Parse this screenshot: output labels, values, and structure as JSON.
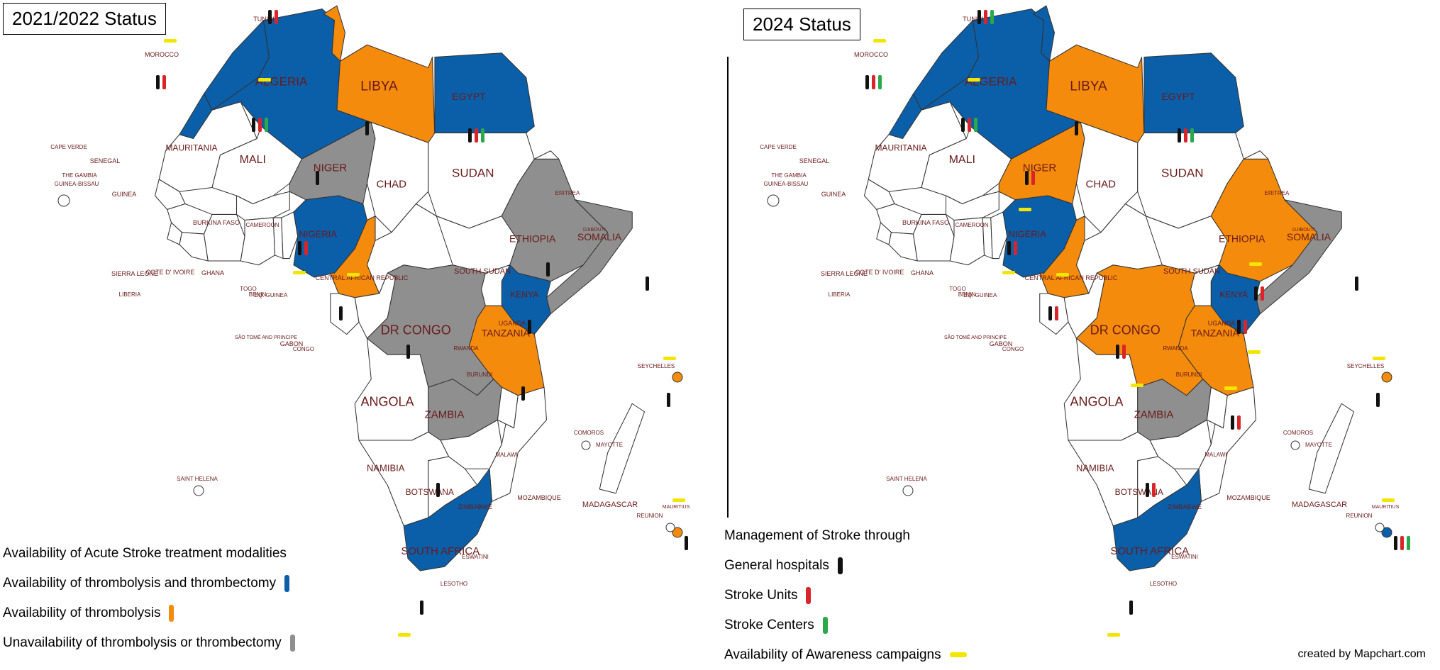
{
  "colors": {
    "both": "#0b5fa8",
    "thrombolysis": "#f48b0c",
    "none": "#8f8f8f",
    "other": "#ffffff",
    "general_hospitals": "#111111",
    "stroke_units": "#d9252a",
    "stroke_centers": "#2aa84a",
    "awareness": "#f2e600",
    "label": "#6b1a1a"
  },
  "maps": [
    {
      "title": "2021/2022 Status",
      "legend_title": "Availability of Acute Stroke treatment modalities",
      "legend_items": [
        {
          "label": "Availability of thrombolysis and thrombectomy",
          "color": "#0b5fa8"
        },
        {
          "label": "Availability of thrombolysis",
          "color": "#f48b0c"
        },
        {
          "label": "Unavailability of thrombolysis or thrombectomy",
          "color": "#8f8f8f"
        }
      ],
      "countries": {
        "MOROCCO": "both",
        "ALGERIA": "both",
        "TUNISIA": "thrombolysis",
        "LIBYA": "thrombolysis",
        "EGYPT": "both",
        "MAURITANIA": "other",
        "MALI": "other",
        "NIGER": "none",
        "CHAD": "other",
        "SUDAN": "other",
        "NIGERIA": "both",
        "CAMEROON": "thrombolysis",
        "ETHIOPIA": "none",
        "SOMALIA": "none",
        "KENYA": "both",
        "DR CONGO": "none",
        "TANZANIA": "thrombolysis",
        "ZAMBIA": "none",
        "ANGOLA": "other",
        "SOUTH AFRICA": "both",
        "SEYCHELLES": "thrombolysis",
        "MAURITIUS": "thrombolysis"
      },
      "markers": {
        "TUNISIA": [
          "general_hospitals",
          "stroke_units"
        ],
        "MOROCCO": [
          "awareness"
        ],
        "MOROCCO_OFF": [
          "general_hospitals",
          "stroke_units"
        ],
        "ALGERIA": [
          "awareness"
        ],
        "ALGERIA_LOW": [
          "general_hospitals",
          "stroke_units",
          "stroke_centers"
        ],
        "LIBYA": [
          "general_hospitals"
        ],
        "EGYPT": [
          "general_hospitals",
          "stroke_units",
          "stroke_centers"
        ],
        "NIGER": [
          "general_hospitals"
        ],
        "NIGERIA": [
          "general_hospitals",
          "stroke_units"
        ],
        "NIGERIA_LOW": [
          "awareness"
        ],
        "CAMEROON": [
          "awareness"
        ],
        "CAMEROON_LOW": [
          "general_hospitals"
        ],
        "ETHIOPIA": [
          "general_hospitals"
        ],
        "SOMALIA": [
          "general_hospitals"
        ],
        "KENYA": [
          "general_hospitals"
        ],
        "DR CONGO": [
          "general_hospitals"
        ],
        "TANZANIA": [
          "general_hospitals"
        ],
        "ZAMBIA": [
          "general_hospitals"
        ],
        "SOUTH AFRICA": [
          "general_hospitals"
        ],
        "SOUTH AFRICA_LOW": [
          "awareness"
        ],
        "SEYCHELLES": [
          "awareness"
        ],
        "SEYCHELLES_LOW": [
          "general_hospitals"
        ],
        "MAURITIUS": [
          "awareness"
        ],
        "MAURITIUS_LOW": [
          "general_hospitals"
        ]
      }
    },
    {
      "title": "2024 Status",
      "legend_title": "Management of Stroke through",
      "legend_items": [
        {
          "label": "General hospitals",
          "color": "#111111",
          "shape": "v"
        },
        {
          "label": "Stroke Units",
          "color": "#d9252a",
          "shape": "v"
        },
        {
          "label": "Stroke Centers",
          "color": "#2aa84a",
          "shape": "v"
        },
        {
          "label": "Availability of Awareness campaigns",
          "color": "#f2e600",
          "shape": "h"
        }
      ],
      "countries": {
        "MOROCCO": "both",
        "ALGERIA": "both",
        "TUNISIA": "both",
        "LIBYA": "thrombolysis",
        "EGYPT": "both",
        "MAURITANIA": "other",
        "MALI": "other",
        "NIGER": "thrombolysis",
        "CHAD": "other",
        "SUDAN": "other",
        "NIGERIA": "both",
        "CAMEROON": "thrombolysis",
        "ETHIOPIA": "thrombolysis",
        "SOMALIA": "none",
        "KENYA": "both",
        "DR CONGO": "thrombolysis",
        "TANZANIA": "thrombolysis",
        "ZAMBIA": "none",
        "ANGOLA": "other",
        "SOUTH AFRICA": "both",
        "SEYCHELLES": "thrombolysis",
        "MAURITIUS": "both"
      },
      "markers": {
        "TUNISIA": [
          "general_hospitals",
          "stroke_units",
          "stroke_centers"
        ],
        "MOROCCO": [
          "awareness"
        ],
        "MOROCCO_OFF": [
          "general_hospitals",
          "stroke_units",
          "stroke_centers"
        ],
        "ALGERIA": [
          "awareness"
        ],
        "ALGERIA_LOW": [
          "general_hospitals",
          "stroke_units",
          "stroke_centers"
        ],
        "LIBYA": [
          "general_hospitals"
        ],
        "EGYPT": [
          "general_hospitals",
          "stroke_units",
          "stroke_centers"
        ],
        "NIGER": [
          "general_hospitals",
          "stroke_units"
        ],
        "NIGER_LOW": [
          "awareness"
        ],
        "NIGERIA": [
          "general_hospitals",
          "stroke_units"
        ],
        "NIGERIA_LOW": [
          "awareness"
        ],
        "CAMEROON": [
          "awareness"
        ],
        "CAMEROON_LOW": [
          "general_hospitals",
          "stroke_units"
        ],
        "ETHIOPIA": [
          "awareness"
        ],
        "ETHIOPIA_LOW": [
          "general_hospitals",
          "stroke_units"
        ],
        "SOMALIA": [
          "general_hospitals"
        ],
        "KENYA": [
          "general_hospitals",
          "stroke_units"
        ],
        "KENYA_LOW": [
          "awareness"
        ],
        "DR CONGO": [
          "general_hospitals",
          "stroke_units"
        ],
        "DR CONGO_LOW": [
          "awareness"
        ],
        "TANZANIA": [
          "awareness"
        ],
        "TANZANIA_LOW": [
          "general_hospitals",
          "stroke_units"
        ],
        "ZAMBIA": [
          "general_hospitals",
          "stroke_units"
        ],
        "SOUTH AFRICA": [
          "general_hospitals"
        ],
        "SOUTH AFRICA_LOW": [
          "awareness"
        ],
        "SEYCHELLES": [
          "awareness"
        ],
        "SEYCHELLES_LOW": [
          "general_hospitals"
        ],
        "MAURITIUS": [
          "awareness"
        ],
        "MAURITIUS_LOW": [
          "general_hospitals",
          "stroke_units",
          "stroke_centers"
        ]
      }
    }
  ],
  "labels": {
    "big": [
      "ALGERIA",
      "LIBYA",
      "EGYPT",
      "MALI",
      "NIGER",
      "CHAD",
      "SUDAN",
      "DR CONGO",
      "TANZANIA",
      "ANGOLA",
      "ZAMBIA",
      "SOUTH AFRICA",
      "ETHIOPIA",
      "SOMALIA",
      "KENYA",
      "NIGERIA",
      "MAURITANIA",
      "NAMIBIA",
      "BOTSWANA"
    ],
    "small": [
      "MOROCCO",
      "TUNISIA",
      "CAPE VERDE",
      "SENEGAL",
      "THE GAMBIA",
      "GUINEA-BISSAU",
      "GUINEA",
      "SIERRA LEONE",
      "LIBERIA",
      "COTE D' IVOIRE",
      "GHANA",
      "TOGO",
      "BENIN",
      "BURKINA FASO",
      "CAMEROON",
      "EQ. GUINEA",
      "SÃO TOMÉ AND PRINCIPE",
      "GABON",
      "CONGO",
      "CENTRAL AFRICAN REPUBLIC",
      "SOUTH SUDAN",
      "UGANDA",
      "RWANDA",
      "BURUNDI",
      "ERITREA",
      "DJIBOUTI",
      "MALAWI",
      "MOZAMBIQUE",
      "ZIMBABWE",
      "ESWATINI",
      "LESOTHO",
      "MADAGASCAR",
      "COMOROS",
      "MAYOTTE",
      "SEYCHELLES",
      "MAURITIUS",
      "REUNION",
      "SAINT HELENA"
    ]
  },
  "credit": "created by Mapchart.com"
}
